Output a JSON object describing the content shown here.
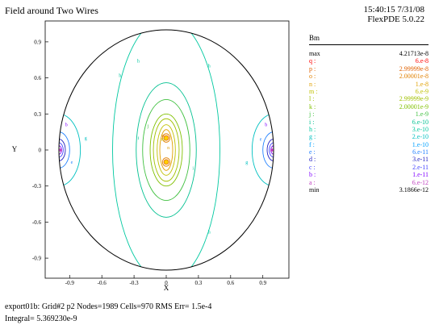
{
  "title": "Field around Two Wires",
  "timestamp": {
    "time_date": "15:40:15 7/31/08",
    "version": "FlexPDE 5.0.22"
  },
  "colors": {
    "a": "#c040c0",
    "b": "#8000ff",
    "c": "#4040ff",
    "d": "#2020c0",
    "e": "#2080ff",
    "f": "#00a0ff",
    "g": "#00c0c0",
    "h": "#00c8a0",
    "i": "#00c090",
    "j": "#40c040",
    "k": "#80c000",
    "l": "#a0c000",
    "m": "#c0c000",
    "n": "#e0a000",
    "o": "#e08000",
    "p": "#e06000",
    "q": "#ff0000"
  },
  "chart_data": {
    "type": "contour",
    "title": "Field around Two Wires",
    "xlabel": "X",
    "ylabel": "Y",
    "xlim": [
      -1.1,
      1.1
    ],
    "ylim": [
      -1.05,
      1.05
    ],
    "xticks": [
      "-0.9",
      "-0.6",
      "-0.3",
      "0",
      "0.3",
      "0.6",
      "0.9"
    ],
    "xtick_values": [
      -0.9,
      -0.6,
      -0.3,
      0,
      0.3,
      0.6,
      0.9
    ],
    "yticks": [
      "0.9",
      "0.6",
      "0.3",
      "0",
      "-0.3",
      "-0.6",
      "-0.9"
    ],
    "ytick_values": [
      0.9,
      0.6,
      0.3,
      0,
      -0.3,
      -0.6,
      -0.9
    ],
    "domain_radius": 1.0,
    "wire_positions": [
      [
        0,
        0.1
      ],
      [
        0,
        -0.1
      ]
    ],
    "legend_title": "Bm",
    "max": "4.21713e-8",
    "min": "3.1866e-12",
    "levels": [
      {
        "key": "q",
        "value": "6.e-8"
      },
      {
        "key": "p",
        "value": "2.99999e-8"
      },
      {
        "key": "o",
        "value": "2.00001e-8"
      },
      {
        "key": "n",
        "value": "1.e-8"
      },
      {
        "key": "m",
        "value": "6.e-9"
      },
      {
        "key": "l",
        "value": "2.99999e-9"
      },
      {
        "key": "k",
        "value": "2.00001e-9"
      },
      {
        "key": "j",
        "value": "1.e-9"
      },
      {
        "key": "i",
        "value": "6.e-10"
      },
      {
        "key": "h",
        "value": "3.e-10"
      },
      {
        "key": "g",
        "value": "2.e-10"
      },
      {
        "key": "f",
        "value": "1.e-10"
      },
      {
        "key": "e",
        "value": "6.e-11"
      },
      {
        "key": "d",
        "value": "3.e-11"
      },
      {
        "key": "c",
        "value": "2.e-11"
      },
      {
        "key": "b",
        "value": "1.e-11"
      },
      {
        "key": "a",
        "value": "6.e-12"
      }
    ],
    "contours": [
      {
        "key": "o",
        "shape": "center",
        "rx": 0.035,
        "ry": 0.035,
        "cy": 0.1
      },
      {
        "key": "o",
        "shape": "center",
        "rx": 0.035,
        "ry": 0.035,
        "cy": -0.1
      },
      {
        "key": "n",
        "shape": "center",
        "rx": 0.06,
        "ry": 0.17,
        "cy": 0
      },
      {
        "key": "m",
        "shape": "center",
        "rx": 0.085,
        "ry": 0.21,
        "cy": 0
      },
      {
        "key": "l",
        "shape": "center",
        "rx": 0.12,
        "ry": 0.26,
        "cy": 0
      },
      {
        "key": "k",
        "shape": "center",
        "rx": 0.15,
        "ry": 0.3,
        "cy": 0
      },
      {
        "key": "j",
        "shape": "center",
        "rx": 0.22,
        "ry": 0.42,
        "cy": 0
      },
      {
        "key": "i",
        "shape": "center",
        "rx": 0.28,
        "ry": 0.56,
        "cy": 0
      },
      {
        "key": "h",
        "shape": "center",
        "rx": 0.5,
        "ry": 1.1,
        "cy": 0
      },
      {
        "key": "g",
        "shape": "side",
        "rx": 0.2,
        "ry": 0.3
      },
      {
        "key": "e",
        "shape": "side",
        "rx": 0.1,
        "ry": 0.15
      },
      {
        "key": "d",
        "shape": "side",
        "rx": 0.06,
        "ry": 0.09
      },
      {
        "key": "c",
        "shape": "side",
        "rx": 0.04,
        "ry": 0.06
      },
      {
        "key": "b",
        "shape": "side",
        "rx": 0.025,
        "ry": 0.035
      }
    ],
    "contour_labels": [
      {
        "text": "m",
        "x": -0.03,
        "y": 0.09,
        "key": "m"
      },
      {
        "text": "n",
        "x": 0.02,
        "y": 0.02,
        "key": "n"
      },
      {
        "text": "o",
        "x": -0.03,
        "y": 0.12,
        "key": "o"
      },
      {
        "text": "j",
        "x": -0.17,
        "y": 0.2,
        "key": "j"
      },
      {
        "text": "i",
        "x": -0.26,
        "y": 0.1,
        "key": "i"
      },
      {
        "text": "i",
        "x": 0.25,
        "y": -0.15,
        "key": "i"
      },
      {
        "text": "h",
        "x": -0.43,
        "y": 0.62,
        "key": "h"
      },
      {
        "text": "h",
        "x": -0.26,
        "y": 0.74,
        "key": "h"
      },
      {
        "text": "h",
        "x": 0.4,
        "y": 0.7,
        "key": "h"
      },
      {
        "text": "h",
        "x": 0.4,
        "y": -0.68,
        "key": "h"
      },
      {
        "text": "g",
        "x": -0.75,
        "y": 0.1,
        "key": "g"
      },
      {
        "text": "g",
        "x": 0.75,
        "y": -0.1,
        "key": "g"
      },
      {
        "text": "e",
        "x": -0.88,
        "y": -0.1,
        "key": "e"
      },
      {
        "text": "e",
        "x": 0.88,
        "y": 0.09,
        "key": "e"
      },
      {
        "text": "b",
        "x": -0.93,
        "y": 0.21,
        "key": "b"
      },
      {
        "text": "b",
        "x": 0.93,
        "y": 0.21,
        "key": "b"
      },
      {
        "text": "a",
        "x": -0.98,
        "y": 0.0,
        "key": "a"
      },
      {
        "text": "a",
        "x": 0.98,
        "y": 0.0,
        "key": "a"
      }
    ]
  },
  "footer": {
    "line1": "export01b:  Grid#2  p2  Nodes=1989 Cells=970 RMS Err= 1.5e-4",
    "line2": "Integral=  5.369230e-9"
  }
}
